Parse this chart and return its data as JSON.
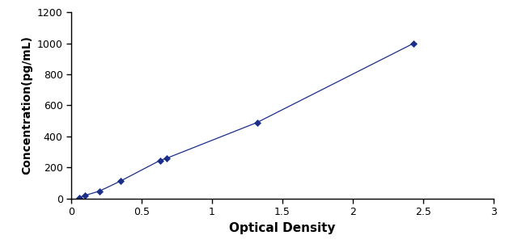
{
  "x": [
    0.055,
    0.1,
    0.2,
    0.35,
    0.63,
    0.68,
    1.32,
    2.43
  ],
  "y": [
    5,
    20,
    47,
    112,
    245,
    260,
    490,
    1000
  ],
  "line_color": "#1a2e8a",
  "marker_color": "#1a2e8a",
  "marker_style": "D",
  "marker_size": 4,
  "line_style": "-",
  "line_width": 0.9,
  "xlabel": "Optical Density",
  "ylabel": "Concentration(pg/mL)",
  "xlim": [
    0,
    3
  ],
  "ylim": [
    0,
    1200
  ],
  "xticks": [
    0,
    0.5,
    1,
    1.5,
    2,
    2.5,
    3
  ],
  "xtick_labels": [
    "0",
    "0.5",
    "1",
    "1.5",
    "2",
    "2.5",
    "3"
  ],
  "yticks": [
    0,
    200,
    400,
    600,
    800,
    1000,
    1200
  ],
  "ytick_labels": [
    "0",
    "200",
    "400",
    "600",
    "800",
    "1000",
    "1200"
  ],
  "xlabel_fontsize": 11,
  "ylabel_fontsize": 10,
  "tick_fontsize": 9,
  "xlabel_bold": true,
  "ylabel_bold": true,
  "background_color": "#ffffff",
  "figsize": [
    6.29,
    3.07
  ],
  "dpi": 100
}
